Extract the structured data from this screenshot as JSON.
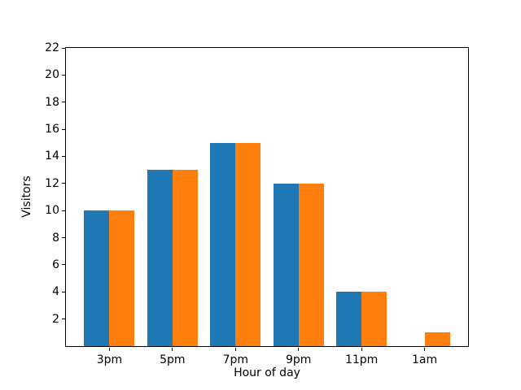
{
  "chart_data": {
    "type": "bar",
    "title": "",
    "xlabel": "Hour of day",
    "ylabel": "Visitors",
    "categories": [
      "3pm",
      "5pm",
      "7pm",
      "9pm",
      "11pm",
      "1am"
    ],
    "series": [
      {
        "name": "blue",
        "color": "#1f77b4",
        "values": [
          10,
          13,
          15,
          12,
          4,
          0
        ]
      },
      {
        "name": "orange",
        "color": "#ff7f0e",
        "values": [
          10,
          13,
          15,
          12,
          4,
          1
        ]
      }
    ],
    "ylim": [
      0,
      22
    ],
    "yticks": [
      2,
      4,
      6,
      8,
      10,
      12,
      14,
      16,
      18,
      20,
      22
    ],
    "grid": false,
    "legend": "none",
    "background_color": "#ffffff",
    "spine_color": "#000000"
  }
}
